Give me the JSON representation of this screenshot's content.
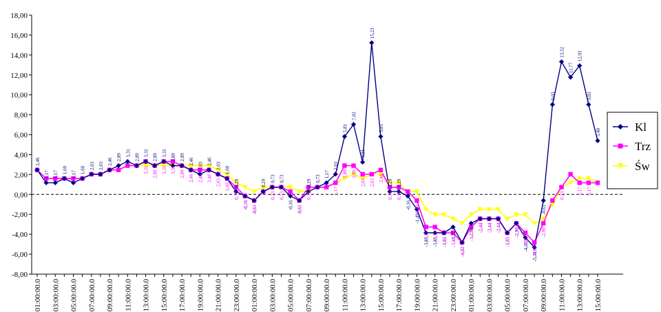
{
  "chart_data": {
    "type": "line",
    "ylim": [
      -8,
      18
    ],
    "y_ticks": [
      "-8,00",
      "-6,00",
      "-4,00",
      "-2,00",
      "0,00",
      "2,00",
      "4,00",
      "6,00",
      "8,00",
      "10,00",
      "12,00",
      "14,00",
      "16,00",
      "18,00"
    ],
    "x_tick_labels": [
      "01:00:00.0",
      "03:00:00.0",
      "05:00:00.0",
      "07:00:00.0",
      "09:00:00.0",
      "11:00:00.0",
      "13:00:00.0",
      "15:00:00.0",
      "17:00:00.0",
      "19:00:00.0",
      "21:00:00.0",
      "23:00:00.0",
      "01:00:00.0",
      "03:00:00.0",
      "05:00:00.0",
      "07:00:00.0",
      "09:00:00.0",
      "11:00:00.0",
      "13:00:00.0",
      "15:00:00.0",
      "17:00:00.0",
      "19:00:00.0",
      "21:00:00.0",
      "23:00:00.0",
      "01:00:00.0",
      "03:00:00.0",
      "05:00:00.0",
      "07:00:00.0",
      "09:00:00.0",
      "11:00:00.0",
      "13:00:00.0",
      "15:00:00.0"
    ],
    "grid": false,
    "zero_line": "dashed",
    "legend_position": "right",
    "series": [
      {
        "name": "Kl",
        "color": "#000080",
        "marker": "diamond",
        "values": [
          2.46,
          1.17,
          1.17,
          1.6,
          1.17,
          1.6,
          2.03,
          2.03,
          2.46,
          2.89,
          3.31,
          2.89,
          3.31,
          2.89,
          3.31,
          2.89,
          2.89,
          2.46,
          2.03,
          2.46,
          2.03,
          1.6,
          0.29,
          -0.16,
          -0.61,
          0.29,
          0.73,
          0.73,
          -0.16,
          -0.61,
          0.29,
          0.73,
          1.17,
          2.03,
          5.81,
          7.03,
          3.24,
          15.23,
          5.81,
          0.29,
          0.29,
          -0.16,
          -1.49,
          -3.85,
          -3.85,
          -3.85,
          -3.27,
          -4.82,
          -2.9,
          -2.44,
          -2.44,
          -2.44,
          -3.85,
          -2.9,
          -4.33,
          -5.31,
          -0.61,
          9.03,
          13.32,
          11.77,
          12.93,
          9.03,
          5.4
        ]
      },
      {
        "name": "Trz",
        "color": "#ff00ff",
        "marker": "square",
        "values": [
          2.46,
          1.6,
          1.6,
          1.6,
          1.6,
          1.6,
          2.03,
          2.03,
          2.46,
          2.46,
          2.89,
          2.89,
          3.31,
          2.89,
          3.31,
          3.31,
          2.89,
          2.46,
          2.46,
          2.46,
          2.03,
          1.6,
          0.73,
          -0.16,
          -0.61,
          0.29,
          0.73,
          0.73,
          0.29,
          -0.61,
          0.73,
          0.73,
          0.73,
          1.17,
          2.89,
          2.89,
          2.03,
          2.03,
          2.46,
          0.73,
          0.73,
          0.29,
          -0.61,
          -3.27,
          -3.27,
          -3.85,
          -3.85,
          -4.82,
          -3.27,
          -2.44,
          -2.44,
          -2.44,
          -3.85,
          -2.9,
          -3.85,
          -4.82,
          -2.9,
          -0.61,
          0.73,
          2.03,
          1.17,
          1.17,
          1.17
        ]
      },
      {
        "name": "Św",
        "color": "#ffff00",
        "marker": "triangle",
        "values": [
          2.46,
          1.6,
          1.6,
          1.6,
          1.6,
          1.6,
          2.03,
          2.03,
          2.46,
          2.46,
          2.89,
          2.89,
          2.89,
          2.89,
          2.89,
          2.89,
          2.89,
          2.89,
          2.89,
          2.89,
          2.46,
          2.03,
          1.17,
          0.73,
          0.29,
          0.73,
          0.73,
          0.73,
          0.73,
          0.29,
          0.29,
          0.73,
          0.73,
          1.17,
          1.6,
          2.03,
          1.6,
          2.03,
          2.03,
          1.17,
          1.17,
          0.29,
          0.29,
          -1.49,
          -2.03,
          -2.03,
          -2.44,
          -2.9,
          -2.03,
          -1.49,
          -1.49,
          -1.49,
          -2.44,
          -2.03,
          -2.03,
          -2.9,
          -2.44,
          -1.03,
          0.73,
          1.17,
          1.6,
          1.6,
          1.17
        ]
      }
    ],
    "data_labels": [
      {
        "s": 0,
        "i": 0,
        "t": "2,46"
      },
      {
        "s": 0,
        "i": 1,
        "t": "1,17"
      },
      {
        "s": 0,
        "i": 2,
        "t": "1,17"
      },
      {
        "s": 0,
        "i": 3,
        "t": "1,60"
      },
      {
        "s": 0,
        "i": 4,
        "t": "1,17"
      },
      {
        "s": 0,
        "i": 5,
        "t": "1,60"
      },
      {
        "s": 0,
        "i": 6,
        "t": "2,03"
      },
      {
        "s": 0,
        "i": 7,
        "t": "2,03"
      },
      {
        "s": 0,
        "i": 8,
        "t": "2,46"
      },
      {
        "s": 0,
        "i": 9,
        "t": "2,89"
      },
      {
        "s": 0,
        "i": 10,
        "t": "3,31"
      },
      {
        "s": 0,
        "i": 11,
        "t": "2,89"
      },
      {
        "s": 0,
        "i": 12,
        "t": "3,31"
      },
      {
        "s": 0,
        "i": 13,
        "t": "2,89"
      },
      {
        "s": 0,
        "i": 14,
        "t": "3,31"
      },
      {
        "s": 0,
        "i": 15,
        "t": "2,89"
      },
      {
        "s": 0,
        "i": 16,
        "t": "2,89"
      },
      {
        "s": 0,
        "i": 17,
        "t": "2,46"
      },
      {
        "s": 0,
        "i": 18,
        "t": "2,03"
      },
      {
        "s": 0,
        "i": 19,
        "t": "2,46"
      },
      {
        "s": 0,
        "i": 20,
        "t": "2,03"
      },
      {
        "s": 0,
        "i": 21,
        "t": "1,60"
      },
      {
        "s": 0,
        "i": 22,
        "t": "0,29"
      },
      {
        "s": 0,
        "i": 23,
        "t": "-0,16"
      },
      {
        "s": 0,
        "i": 24,
        "t": "-0,61"
      },
      {
        "s": 0,
        "i": 25,
        "t": "0,29"
      },
      {
        "s": 0,
        "i": 26,
        "t": "0,73"
      },
      {
        "s": 0,
        "i": 27,
        "t": "0,73"
      },
      {
        "s": 0,
        "i": 28,
        "t": "-0,16"
      },
      {
        "s": 0,
        "i": 29,
        "t": "-0,61"
      },
      {
        "s": 0,
        "i": 30,
        "t": "0,29"
      },
      {
        "s": 0,
        "i": 31,
        "t": "0,73"
      },
      {
        "s": 0,
        "i": 32,
        "t": "1,17"
      },
      {
        "s": 0,
        "i": 33,
        "t": "2,03"
      },
      {
        "s": 0,
        "i": 34,
        "t": "5,81"
      },
      {
        "s": 0,
        "i": 35,
        "t": "7,03"
      },
      {
        "s": 0,
        "i": 36,
        "t": "3,24"
      },
      {
        "s": 0,
        "i": 37,
        "t": "15,23"
      },
      {
        "s": 0,
        "i": 38,
        "t": "5,81"
      },
      {
        "s": 0,
        "i": 39,
        "t": "0,29"
      },
      {
        "s": 0,
        "i": 40,
        "t": "0,29"
      },
      {
        "s": 0,
        "i": 41,
        "t": "-0,16"
      },
      {
        "s": 0,
        "i": 42,
        "t": "-1,49"
      },
      {
        "s": 0,
        "i": 43,
        "t": "-3,85"
      },
      {
        "s": 0,
        "i": 44,
        "t": "-3,85"
      },
      {
        "s": 0,
        "i": 45,
        "t": "-3,85"
      },
      {
        "s": 0,
        "i": 46,
        "t": "-3,27"
      },
      {
        "s": 0,
        "i": 47,
        "t": "-4,82"
      },
      {
        "s": 0,
        "i": 48,
        "t": "-2,90"
      },
      {
        "s": 0,
        "i": 49,
        "t": "-2,44"
      },
      {
        "s": 0,
        "i": 50,
        "t": "-2,44"
      },
      {
        "s": 0,
        "i": 51,
        "t": "-2,44"
      },
      {
        "s": 0,
        "i": 52,
        "t": "-3,85"
      },
      {
        "s": 0,
        "i": 53,
        "t": "-2,90"
      },
      {
        "s": 0,
        "i": 54,
        "t": "-4,33"
      },
      {
        "s": 0,
        "i": 55,
        "t": "-5,31"
      },
      {
        "s": 0,
        "i": 56,
        "t": "-0,61"
      },
      {
        "s": 0,
        "i": 57,
        "t": "9,03"
      },
      {
        "s": 0,
        "i": 58,
        "t": "13,32"
      },
      {
        "s": 0,
        "i": 59,
        "t": "11,77"
      },
      {
        "s": 0,
        "i": 60,
        "t": "12,93"
      },
      {
        "s": 0,
        "i": 61,
        "t": "9,03"
      },
      {
        "s": 0,
        "i": 62,
        "t": "5,40"
      },
      {
        "s": 1,
        "i": 12,
        "t": "3,31"
      },
      {
        "s": 1,
        "i": 13,
        "t": "2,89"
      },
      {
        "s": 1,
        "i": 14,
        "t": "3,31"
      },
      {
        "s": 1,
        "i": 15,
        "t": "3,31"
      },
      {
        "s": 1,
        "i": 16,
        "t": "2,89"
      },
      {
        "s": 1,
        "i": 17,
        "t": "2,46"
      },
      {
        "s": 1,
        "i": 18,
        "t": "2,46"
      },
      {
        "s": 1,
        "i": 19,
        "t": "2,46"
      },
      {
        "s": 1,
        "i": 20,
        "t": "2,03"
      },
      {
        "s": 1,
        "i": 21,
        "t": "1,60"
      },
      {
        "s": 1,
        "i": 22,
        "t": "0,73"
      },
      {
        "s": 1,
        "i": 23,
        "t": "-0,16"
      },
      {
        "s": 1,
        "i": 24,
        "t": "-0,61"
      },
      {
        "s": 1,
        "i": 26,
        "t": "0,73"
      },
      {
        "s": 1,
        "i": 27,
        "t": "0,73"
      },
      {
        "s": 1,
        "i": 29,
        "t": "-0,61"
      },
      {
        "s": 1,
        "i": 30,
        "t": "0,73"
      },
      {
        "s": 1,
        "i": 33,
        "t": "1,17"
      },
      {
        "s": 1,
        "i": 34,
        "t": "2,89"
      },
      {
        "s": 1,
        "i": 35,
        "t": "2,89"
      },
      {
        "s": 1,
        "i": 36,
        "t": "2,03"
      },
      {
        "s": 1,
        "i": 37,
        "t": "2,03"
      },
      {
        "s": 1,
        "i": 38,
        "t": "2,46"
      },
      {
        "s": 1,
        "i": 39,
        "t": "0,73"
      },
      {
        "s": 1,
        "i": 40,
        "t": "0,73"
      },
      {
        "s": 1,
        "i": 42,
        "t": "-0,61"
      },
      {
        "s": 1,
        "i": 43,
        "t": "-3,27"
      },
      {
        "s": 1,
        "i": 44,
        "t": "-3,27"
      },
      {
        "s": 1,
        "i": 45,
        "t": "-3,85"
      },
      {
        "s": 1,
        "i": 46,
        "t": "-3,85"
      },
      {
        "s": 1,
        "i": 47,
        "t": "-4,82"
      },
      {
        "s": 1,
        "i": 48,
        "t": "-3,27"
      },
      {
        "s": 1,
        "i": 49,
        "t": "-2,44"
      },
      {
        "s": 1,
        "i": 50,
        "t": "-2,44"
      },
      {
        "s": 1,
        "i": 51,
        "t": "-2,44"
      },
      {
        "s": 1,
        "i": 52,
        "t": "-3,85"
      },
      {
        "s": 1,
        "i": 53,
        "t": "-2,90"
      },
      {
        "s": 1,
        "i": 54,
        "t": "-3,85"
      },
      {
        "s": 1,
        "i": 55,
        "t": "-4,82"
      },
      {
        "s": 1,
        "i": 56,
        "t": "-2,90"
      },
      {
        "s": 1,
        "i": 58,
        "t": "0,73"
      },
      {
        "s": 1,
        "i": 60,
        "t": "1,17"
      },
      {
        "s": 1,
        "i": 61,
        "t": "1,17"
      }
    ]
  }
}
